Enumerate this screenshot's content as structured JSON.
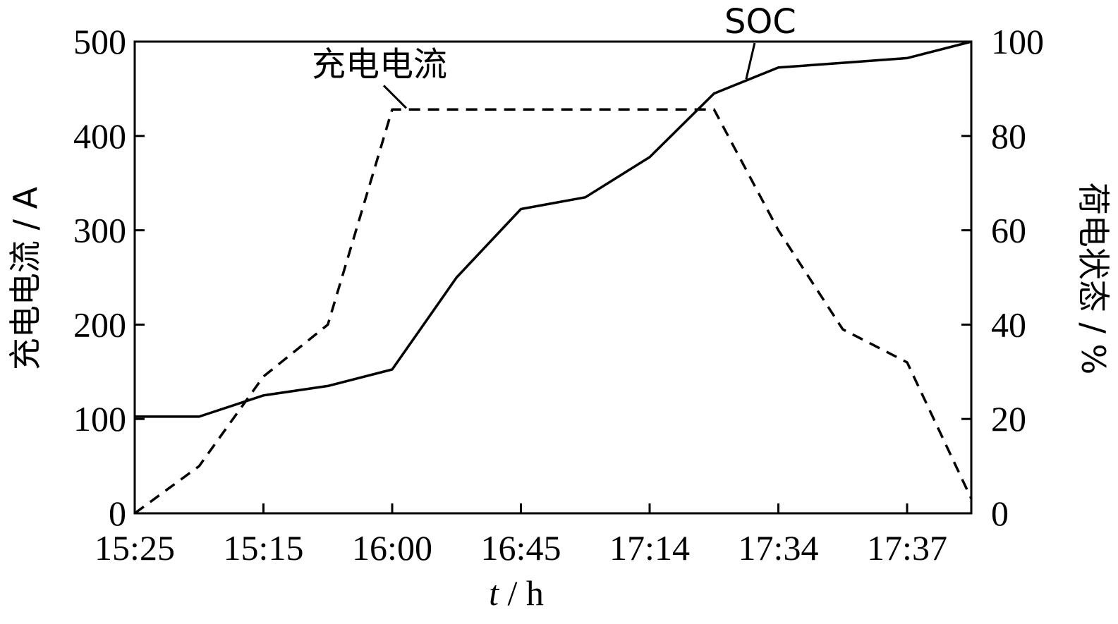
{
  "chart_data": {
    "type": "line",
    "x_tick_labels": [
      "15:25",
      "15:15",
      "16:00",
      "16:45",
      "17:14",
      "17:34",
      "17:37"
    ],
    "xlabel": {
      "var": "t",
      "unit": " / h"
    },
    "ylabel_left": "充电电流 / A",
    "ylabel_right": "荷电状态 / %",
    "ylim_left": [
      0,
      500
    ],
    "ylim_right": [
      0,
      100
    ],
    "yticks_left": [
      "0",
      "100",
      "200",
      "300",
      "400",
      "500"
    ],
    "yticks_right": [
      "0",
      "20",
      "40",
      "60",
      "80",
      "100"
    ],
    "grid": false,
    "series": [
      {
        "name": "充电电流",
        "axis": "left",
        "style": "dashed",
        "points": [
          [
            0,
            0
          ],
          [
            0.5,
            50
          ],
          [
            1,
            145
          ],
          [
            1.5,
            200
          ],
          [
            2,
            428
          ],
          [
            3,
            428
          ],
          [
            4,
            428
          ],
          [
            4.5,
            428
          ],
          [
            5,
            300
          ],
          [
            5.5,
            195
          ],
          [
            6,
            160
          ],
          [
            6.5,
            15
          ]
        ]
      },
      {
        "name": "SOC",
        "axis": "right",
        "style": "solid",
        "points": [
          [
            0,
            20.5
          ],
          [
            0.5,
            20.5
          ],
          [
            1,
            25
          ],
          [
            1.5,
            27
          ],
          [
            2,
            30.5
          ],
          [
            2.5,
            50
          ],
          [
            3,
            64.5
          ],
          [
            3.5,
            67
          ],
          [
            4,
            75.5
          ],
          [
            4.5,
            89
          ],
          [
            5,
            94.5
          ],
          [
            5.5,
            95.5
          ],
          [
            6,
            96.5
          ],
          [
            6.5,
            100
          ]
        ]
      }
    ],
    "annotations": [
      {
        "text": "充电电流",
        "series": "充电电流"
      },
      {
        "text": "SOC",
        "series": "SOC"
      }
    ]
  }
}
